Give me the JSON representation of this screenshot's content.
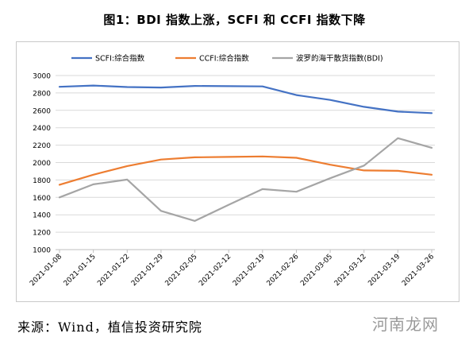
{
  "title": "图1：BDI 指数上涨，SCFI 和 CCFI 指数下降",
  "source": "来源：Wind，植信投资研究院",
  "watermark": "河南龙网",
  "chart_data": {
    "type": "line",
    "categories": [
      "2021-01-08",
      "2021-01-15",
      "2021-01-22",
      "2021-01-29",
      "2021-02-05",
      "2021-02-12",
      "2021-02-19",
      "2021-02-26",
      "2021-03-05",
      "2021-03-12",
      "2021-03-19",
      "2021-03-26"
    ],
    "ylim": [
      1000,
      3000
    ],
    "yticks": [
      1000,
      1200,
      1400,
      1600,
      1800,
      2000,
      2200,
      2400,
      2600,
      2800,
      3000
    ],
    "grid": "horizontal",
    "legend_position": "top",
    "series": [
      {
        "name": "SCFI:综合指数",
        "color": "#4472C4",
        "values": [
          2870,
          2885,
          2868,
          2862,
          2880,
          2878,
          2875,
          2775,
          2720,
          2640,
          2585,
          2568
        ]
      },
      {
        "name": "CCFI:综合指数",
        "color": "#ED7D31",
        "values": [
          1745,
          1860,
          1960,
          2035,
          2060,
          2065,
          2070,
          2055,
          1975,
          1910,
          1905,
          1860
        ]
      },
      {
        "name": "波罗的海干散货指数(BDI)",
        "color": "#A5A5A5",
        "values": [
          1600,
          1750,
          1805,
          1445,
          1330,
          1515,
          1695,
          1665,
          1820,
          1965,
          2280,
          2170
        ]
      }
    ]
  }
}
